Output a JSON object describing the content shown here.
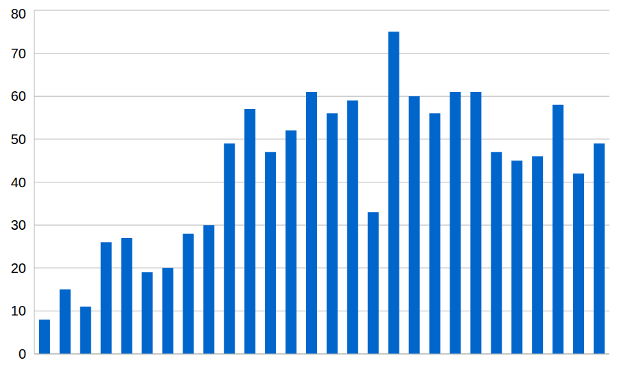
{
  "chart_data": {
    "type": "bar",
    "categories": [
      null,
      null,
      null,
      null,
      null,
      null,
      null,
      null,
      null,
      null,
      null,
      null,
      null,
      null,
      null,
      null,
      null,
      null,
      null,
      null,
      null,
      null,
      null,
      null,
      null,
      null,
      null,
      null
    ],
    "values": [
      8,
      15,
      11,
      26,
      27,
      19,
      20,
      28,
      30,
      49,
      57,
      47,
      52,
      61,
      56,
      59,
      33,
      75,
      60,
      56,
      61,
      61,
      47,
      45,
      46,
      58,
      42,
      49
    ],
    "color": "#0066cc",
    "ylim": [
      0,
      80
    ],
    "yticks": [
      0,
      10,
      20,
      30,
      40,
      50,
      60,
      70,
      80
    ],
    "grid": true,
    "tick_labels": "y"
  }
}
